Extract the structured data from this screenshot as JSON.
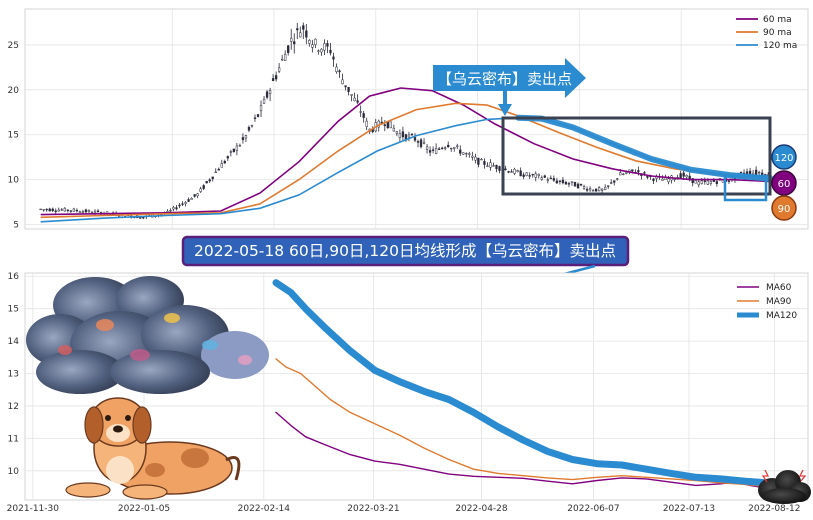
{
  "colors": {
    "ma60": "#800080",
    "ma90": "#e07a2f",
    "ma120": "#2b8bd1",
    "candle": "#2a2a3a",
    "frame": "#3a4150",
    "callout": "#2b8bd1",
    "banner_bg": "#2f62b8",
    "banner_border": "#5a1f7a"
  },
  "chart_data": [
    {
      "type": "line",
      "subtype": "candlestick_with_moving_averages",
      "ylim": [
        4.5,
        29
      ],
      "yticks": [
        5,
        10,
        15,
        20,
        25
      ],
      "grid": true,
      "legend_position": "top-right",
      "series": [
        {
          "name": "60 ma",
          "color_key": "ma60",
          "points": [
            [
              0.02,
              6.1
            ],
            [
              0.1,
              6.2
            ],
            [
              0.18,
              6.3
            ],
            [
              0.25,
              6.5
            ],
            [
              0.3,
              8.5
            ],
            [
              0.35,
              12.0
            ],
            [
              0.4,
              16.5
            ],
            [
              0.44,
              19.3
            ],
            [
              0.48,
              20.2
            ],
            [
              0.52,
              19.9
            ],
            [
              0.56,
              18.3
            ],
            [
              0.6,
              16.2
            ],
            [
              0.65,
              14.0
            ],
            [
              0.7,
              12.3
            ],
            [
              0.75,
              11.2
            ],
            [
              0.8,
              10.4
            ],
            [
              0.85,
              10.0
            ],
            [
              0.9,
              10.0
            ],
            [
              0.95,
              9.8
            ],
            [
              0.98,
              9.6
            ]
          ]
        },
        {
          "name": "90 ma",
          "color_key": "ma90",
          "points": [
            [
              0.02,
              5.8
            ],
            [
              0.1,
              6.0
            ],
            [
              0.18,
              6.2
            ],
            [
              0.25,
              6.3
            ],
            [
              0.3,
              7.3
            ],
            [
              0.35,
              10.0
            ],
            [
              0.4,
              13.2
            ],
            [
              0.45,
              16.0
            ],
            [
              0.5,
              17.8
            ],
            [
              0.55,
              18.5
            ],
            [
              0.59,
              18.3
            ],
            [
              0.63,
              17.1
            ],
            [
              0.68,
              15.3
            ],
            [
              0.73,
              13.6
            ],
            [
              0.78,
              12.1
            ],
            [
              0.83,
              11.2
            ],
            [
              0.88,
              10.6
            ],
            [
              0.93,
              10.1
            ],
            [
              0.98,
              9.7
            ]
          ]
        },
        {
          "name": "120 ma",
          "color_key": "ma120",
          "points": [
            [
              0.02,
              5.3
            ],
            [
              0.1,
              5.7
            ],
            [
              0.18,
              6.0
            ],
            [
              0.25,
              6.2
            ],
            [
              0.3,
              6.8
            ],
            [
              0.35,
              8.3
            ],
            [
              0.4,
              10.8
            ],
            [
              0.45,
              13.2
            ],
            [
              0.5,
              14.9
            ],
            [
              0.55,
              16.0
            ],
            [
              0.59,
              16.7
            ],
            [
              0.63,
              16.9
            ],
            [
              0.66,
              16.8
            ],
            [
              0.7,
              15.8
            ],
            [
              0.75,
              14.0
            ],
            [
              0.8,
              12.3
            ],
            [
              0.85,
              11.1
            ],
            [
              0.9,
              10.5
            ],
            [
              0.95,
              10.1
            ],
            [
              0.98,
              9.6
            ]
          ]
        }
      ],
      "candle_envelope": [
        [
          0.02,
          6.7
        ],
        [
          0.06,
          6.6
        ],
        [
          0.1,
          6.3
        ],
        [
          0.13,
          6.0
        ],
        [
          0.15,
          5.8
        ],
        [
          0.18,
          6.2
        ],
        [
          0.22,
          8.3
        ],
        [
          0.25,
          11.5
        ],
        [
          0.28,
          14.5
        ],
        [
          0.3,
          17.5
        ],
        [
          0.32,
          21.5
        ],
        [
          0.34,
          25.5
        ],
        [
          0.355,
          27.0
        ],
        [
          0.37,
          25.0
        ],
        [
          0.39,
          24.5
        ],
        [
          0.4,
          22.0
        ],
        [
          0.42,
          19.0
        ],
        [
          0.43,
          17.5
        ],
        [
          0.44,
          15.5
        ],
        [
          0.46,
          16.5
        ],
        [
          0.48,
          15.0
        ],
        [
          0.5,
          14.5
        ],
        [
          0.52,
          13.0
        ],
        [
          0.54,
          14.0
        ],
        [
          0.56,
          13.0
        ],
        [
          0.58,
          12.0
        ],
        [
          0.6,
          11.5
        ],
        [
          0.62,
          11.0
        ],
        [
          0.64,
          10.5
        ],
        [
          0.66,
          10.3
        ],
        [
          0.68,
          9.8
        ],
        [
          0.7,
          9.5
        ],
        [
          0.72,
          9.0
        ],
        [
          0.74,
          8.8
        ],
        [
          0.76,
          10.5
        ],
        [
          0.78,
          11.0
        ],
        [
          0.8,
          10.2
        ],
        [
          0.82,
          10.0
        ],
        [
          0.84,
          10.5
        ],
        [
          0.86,
          9.6
        ],
        [
          0.88,
          9.8
        ],
        [
          0.9,
          10.0
        ],
        [
          0.92,
          10.8
        ],
        [
          0.94,
          10.8
        ],
        [
          0.96,
          10.0
        ],
        [
          0.98,
          9.0
        ]
      ],
      "annotations": {
        "callout_label": "【乌云密布】卖出点",
        "badges": [
          "120",
          "60",
          "90"
        ]
      }
    },
    {
      "type": "line",
      "ylim": [
        9.1,
        16.1
      ],
      "yticks": [
        10,
        11,
        12,
        13,
        14,
        15,
        16
      ],
      "xticks": [
        "2021-11-30",
        "2022-01-05",
        "2022-02-14",
        "2022-03-21",
        "2022-04-28",
        "2022-06-07",
        "2022-07-13",
        "2022-08-12"
      ],
      "grid": true,
      "legend_position": "top-right",
      "series": [
        {
          "name": "MA60",
          "color_key": "ma60",
          "points": [
            [
              0.0,
              11.8
            ],
            [
              0.03,
              11.4
            ],
            [
              0.06,
              11.05
            ],
            [
              0.1,
              10.8
            ],
            [
              0.15,
              10.5
            ],
            [
              0.2,
              10.3
            ],
            [
              0.25,
              10.2
            ],
            [
              0.3,
              10.05
            ],
            [
              0.35,
              9.9
            ],
            [
              0.4,
              9.83
            ],
            [
              0.45,
              9.8
            ],
            [
              0.5,
              9.77
            ],
            [
              0.55,
              9.68
            ],
            [
              0.6,
              9.6
            ],
            [
              0.65,
              9.7
            ],
            [
              0.7,
              9.78
            ],
            [
              0.75,
              9.75
            ],
            [
              0.8,
              9.65
            ],
            [
              0.85,
              9.55
            ],
            [
              0.9,
              9.6
            ],
            [
              0.93,
              9.65
            ],
            [
              0.96,
              9.55
            ],
            [
              1.0,
              9.45
            ]
          ]
        },
        {
          "name": "MA90",
          "color_key": "ma90",
          "points": [
            [
              0.0,
              13.45
            ],
            [
              0.02,
              13.2
            ],
            [
              0.05,
              13.0
            ],
            [
              0.08,
              12.6
            ],
            [
              0.11,
              12.2
            ],
            [
              0.15,
              11.8
            ],
            [
              0.2,
              11.45
            ],
            [
              0.25,
              11.1
            ],
            [
              0.3,
              10.7
            ],
            [
              0.35,
              10.35
            ],
            [
              0.4,
              10.05
            ],
            [
              0.45,
              9.92
            ],
            [
              0.5,
              9.85
            ],
            [
              0.55,
              9.78
            ],
            [
              0.6,
              9.73
            ],
            [
              0.65,
              9.8
            ],
            [
              0.7,
              9.85
            ],
            [
              0.75,
              9.8
            ],
            [
              0.8,
              9.75
            ],
            [
              0.85,
              9.7
            ],
            [
              0.9,
              9.63
            ],
            [
              0.95,
              9.58
            ],
            [
              1.0,
              9.5
            ]
          ]
        },
        {
          "name": "MA120",
          "color_key": "ma120",
          "points": [
            [
              0.0,
              15.8
            ],
            [
              0.03,
              15.5
            ],
            [
              0.06,
              15.0
            ],
            [
              0.1,
              14.4
            ],
            [
              0.15,
              13.7
            ],
            [
              0.2,
              13.1
            ],
            [
              0.25,
              12.75
            ],
            [
              0.3,
              12.45
            ],
            [
              0.35,
              12.2
            ],
            [
              0.4,
              11.8
            ],
            [
              0.45,
              11.35
            ],
            [
              0.5,
              10.95
            ],
            [
              0.55,
              10.6
            ],
            [
              0.6,
              10.35
            ],
            [
              0.65,
              10.22
            ],
            [
              0.7,
              10.18
            ],
            [
              0.75,
              10.05
            ],
            [
              0.8,
              9.92
            ],
            [
              0.85,
              9.8
            ],
            [
              0.9,
              9.75
            ],
            [
              0.95,
              9.68
            ],
            [
              1.0,
              9.62
            ]
          ]
        }
      ]
    }
  ],
  "banner_label": "2022-05-18 60日,90日,120日均线形成【乌云密布】卖出点"
}
